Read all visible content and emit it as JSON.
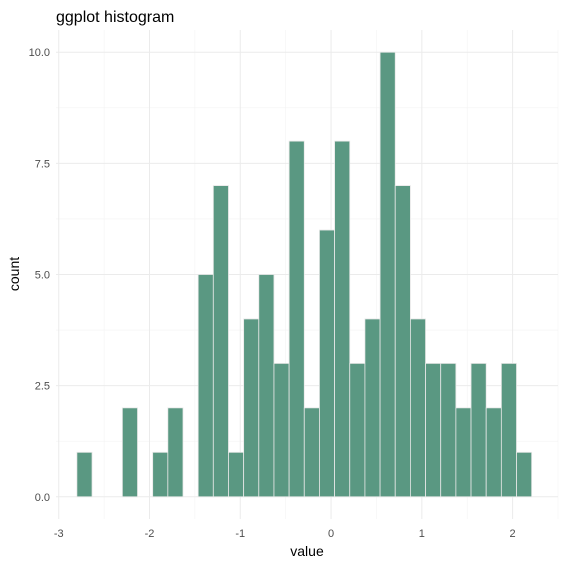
{
  "chart_data": {
    "type": "bar",
    "title": "ggplot histogram",
    "xlabel": "value",
    "ylabel": "count",
    "xlim": [
      -3.03,
      2.5
    ],
    "ylim": [
      -0.5,
      10.5
    ],
    "x_ticks": [
      -3,
      -2,
      -1,
      0,
      1,
      2
    ],
    "x_tick_labels": [
      "-3",
      "-2",
      "-1",
      "0",
      "1",
      "2"
    ],
    "y_ticks": [
      0,
      2.5,
      5,
      7.5,
      10
    ],
    "y_tick_labels": [
      "0.0",
      "2.5",
      "5.0",
      "7.5",
      "10.0"
    ],
    "grid": true,
    "bar_color": "#5a9882",
    "bar_outline": "#e8e8e8",
    "bins": {
      "start": -2.8,
      "width": 0.167,
      "counts": [
        1,
        0,
        0,
        2,
        0,
        1,
        2,
        0,
        5,
        7,
        1,
        4,
        5,
        3,
        8,
        2,
        6,
        8,
        3,
        4,
        10,
        7,
        4,
        3,
        3,
        2,
        3,
        2,
        3,
        1
      ]
    }
  }
}
